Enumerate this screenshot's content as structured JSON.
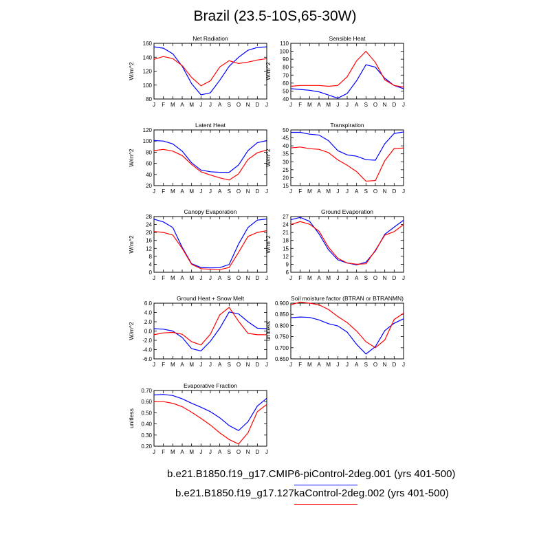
{
  "title": "Brazil (23.5-10S,65-30W)",
  "colors": {
    "series1": "#0000ff",
    "series2": "#ff0000"
  },
  "legend": [
    {
      "label": "b.e21.B1850.f19_g17.CMIP6-piControl-2deg.001 (yrs 401-500)",
      "color": "#0000ff"
    },
    {
      "label": "b.e21.B1850.f19_g17.127kaControl-2deg.002 (yrs 401-500)",
      "color": "#ff0000"
    }
  ],
  "chart_data": [
    {
      "type": "line",
      "title": "Net Radiation",
      "ylabel": "W/m^2",
      "x": [
        "J",
        "F",
        "M",
        "A",
        "M",
        "J",
        "J",
        "A",
        "S",
        "O",
        "N",
        "D",
        "J"
      ],
      "ylim": [
        80,
        160
      ],
      "yticks": [
        "80",
        "100",
        "120",
        "140",
        "160"
      ],
      "ytick_values": [
        80,
        100,
        120,
        140,
        160
      ],
      "series": [
        {
          "values": [
            155,
            153,
            145,
            127,
            102,
            86,
            89,
            107,
            127,
            140,
            150,
            154,
            155
          ]
        },
        {
          "values": [
            137,
            141,
            138,
            128,
            111,
            99,
            106,
            126,
            135,
            131,
            133,
            136,
            138
          ]
        }
      ]
    },
    {
      "type": "line",
      "title": "Sensible Heat",
      "ylabel": "W/m^2",
      "x": [
        "J",
        "F",
        "M",
        "A",
        "M",
        "J",
        "J",
        "A",
        "S",
        "O",
        "N",
        "D",
        "J"
      ],
      "ylim": [
        40,
        110
      ],
      "yticks": [
        "40",
        "50",
        "60",
        "70",
        "80",
        "90",
        "100",
        "110"
      ],
      "ytick_values": [
        40,
        50,
        60,
        70,
        80,
        90,
        100,
        110
      ],
      "series": [
        {
          "values": [
            53,
            52,
            51,
            49,
            45,
            41,
            47,
            63,
            83,
            80,
            66,
            57,
            53
          ]
        },
        {
          "values": [
            56,
            57,
            57,
            57,
            56,
            57,
            68,
            88,
            100,
            86,
            64,
            57,
            55
          ]
        }
      ]
    },
    {
      "type": "line",
      "title": "Latent Heat",
      "ylabel": "W/m^2",
      "x": [
        "J",
        "F",
        "M",
        "A",
        "M",
        "J",
        "J",
        "A",
        "S",
        "O",
        "N",
        "D",
        "J"
      ],
      "ylim": [
        20,
        120
      ],
      "yticks": [
        "20",
        "40",
        "60",
        "80",
        "100",
        "120"
      ],
      "ytick_values": [
        20,
        40,
        60,
        80,
        100,
        120
      ],
      "series": [
        {
          "values": [
            101,
            100,
            95,
            82,
            61,
            48,
            45,
            44,
            44,
            57,
            83,
            97,
            101
          ]
        },
        {
          "values": [
            83,
            85,
            82,
            74,
            58,
            45,
            39,
            34,
            30,
            41,
            67,
            79,
            84
          ]
        }
      ]
    },
    {
      "type": "line",
      "title": "Transpiration",
      "ylabel": "W/m^2",
      "x": [
        "J",
        "F",
        "M",
        "A",
        "M",
        "J",
        "J",
        "A",
        "S",
        "O",
        "N",
        "D",
        "J"
      ],
      "ylim": [
        15,
        50
      ],
      "yticks": [
        "15",
        "20",
        "25",
        "30",
        "35",
        "40",
        "45",
        "50"
      ],
      "ytick_values": [
        15,
        20,
        25,
        30,
        35,
        40,
        45,
        50
      ],
      "series": [
        {
          "values": [
            48.5,
            48.5,
            47.3,
            46.8,
            43.3,
            37,
            34.3,
            33.5,
            31.3,
            31,
            41.3,
            47.8,
            48.7
          ]
        },
        {
          "values": [
            38.7,
            39.3,
            38.2,
            37.8,
            35.8,
            31.2,
            27.8,
            23.8,
            17.8,
            18.2,
            30.7,
            38.3,
            38.6
          ]
        }
      ]
    },
    {
      "type": "line",
      "title": "Canopy Evaporation",
      "ylabel": "W/m^2",
      "x": [
        "J",
        "F",
        "M",
        "A",
        "M",
        "J",
        "J",
        "A",
        "S",
        "O",
        "N",
        "D",
        "J"
      ],
      "ylim": [
        0,
        28
      ],
      "yticks": [
        "0",
        "4",
        "8",
        "12",
        "16",
        "20",
        "24",
        "28"
      ],
      "ytick_values": [
        0,
        4,
        8,
        12,
        16,
        20,
        24,
        28
      ],
      "series": [
        {
          "values": [
            26.7,
            25.3,
            22.5,
            12.5,
            4.3,
            2.4,
            2.2,
            2.3,
            3.9,
            14.2,
            22.5,
            26.2,
            26.8
          ]
        },
        {
          "values": [
            20.5,
            20,
            18.7,
            12,
            4,
            1.8,
            1.5,
            1.3,
            2.4,
            10,
            18,
            20,
            20.9
          ]
        }
      ]
    },
    {
      "type": "line",
      "title": "Ground Evaporation",
      "ylabel": "W/m^2",
      "x": [
        "J",
        "F",
        "M",
        "A",
        "M",
        "J",
        "J",
        "A",
        "S",
        "O",
        "N",
        "D",
        "J"
      ],
      "ylim": [
        6,
        27
      ],
      "yticks": [
        "6",
        "9",
        "12",
        "15",
        "18",
        "21",
        "24",
        "27"
      ],
      "ytick_values": [
        6,
        9,
        12,
        15,
        18,
        21,
        24,
        27
      ],
      "series": [
        {
          "values": [
            25.8,
            26.7,
            25.2,
            20.5,
            14.5,
            10.7,
            9.5,
            8.8,
            9.8,
            14,
            20.3,
            23,
            25.6
          ]
        },
        {
          "values": [
            24,
            25.1,
            24.1,
            21.5,
            15.5,
            11.3,
            9.5,
            9,
            9.2,
            14.3,
            20,
            21.3,
            24
          ]
        }
      ]
    },
    {
      "type": "line",
      "title": "Ground Heat + Snow Melt",
      "ylabel": "W/m^2",
      "x": [
        "J",
        "F",
        "M",
        "A",
        "M",
        "J",
        "J",
        "A",
        "S",
        "O",
        "N",
        "D",
        "J"
      ],
      "ylim": [
        -6,
        6
      ],
      "yticks": [
        "-6.0",
        "-4.0",
        "-2.0",
        "0.0",
        "2.0",
        "4.0",
        "6.0"
      ],
      "ytick_values": [
        -6,
        -4,
        -2,
        0,
        2,
        4,
        6
      ],
      "series": [
        {
          "values": [
            0.5,
            0.4,
            0,
            -1.4,
            -3.8,
            -4.3,
            -2.2,
            0.6,
            4.1,
            3.7,
            2,
            0.6,
            0.5
          ]
        },
        {
          "values": [
            -0.8,
            -0.4,
            -0.3,
            -0.7,
            -2.3,
            -3,
            -0.7,
            3.5,
            5.1,
            2.1,
            -0.5,
            -0.8,
            -0.8
          ]
        }
      ]
    },
    {
      "type": "line",
      "title": "Soil moisture factor (BTRAN or BTRANMN)",
      "ylabel": "unitless",
      "x": [
        "J",
        "F",
        "M",
        "A",
        "M",
        "J",
        "J",
        "A",
        "S",
        "O",
        "N",
        "D",
        "J"
      ],
      "ylim": [
        0.65,
        0.9
      ],
      "yticks": [
        "0.650",
        "0.700",
        "0.750",
        "0.800",
        "0.850",
        "0.900"
      ],
      "ytick_values": [
        0.65,
        0.7,
        0.75,
        0.8,
        0.85,
        0.9
      ],
      "series": [
        {
          "values": [
            0.835,
            0.838,
            0.836,
            0.825,
            0.808,
            0.798,
            0.77,
            0.715,
            0.672,
            0.705,
            0.777,
            0.81,
            0.83
          ]
        },
        {
          "values": [
            0.893,
            0.905,
            0.9,
            0.893,
            0.872,
            0.84,
            0.813,
            0.775,
            0.727,
            0.7,
            0.735,
            0.827,
            0.855
          ]
        }
      ]
    },
    {
      "type": "line",
      "title": "Evaporative Fraction",
      "ylabel": "unitless",
      "x": [
        "J",
        "F",
        "M",
        "A",
        "M",
        "J",
        "J",
        "A",
        "S",
        "O",
        "N",
        "D",
        "J"
      ],
      "ylim": [
        0.2,
        0.7
      ],
      "yticks": [
        "0.20",
        "0.30",
        "0.40",
        "0.50",
        "0.60",
        "0.70"
      ],
      "ytick_values": [
        0.2,
        0.3,
        0.4,
        0.5,
        0.6,
        0.7
      ],
      "series": [
        {
          "values": [
            0.66,
            0.665,
            0.655,
            0.625,
            0.585,
            0.55,
            0.51,
            0.455,
            0.385,
            0.34,
            0.42,
            0.56,
            0.63
          ]
        },
        {
          "values": [
            0.6,
            0.6,
            0.585,
            0.555,
            0.505,
            0.45,
            0.39,
            0.32,
            0.26,
            0.22,
            0.32,
            0.51,
            0.575
          ]
        }
      ]
    }
  ]
}
